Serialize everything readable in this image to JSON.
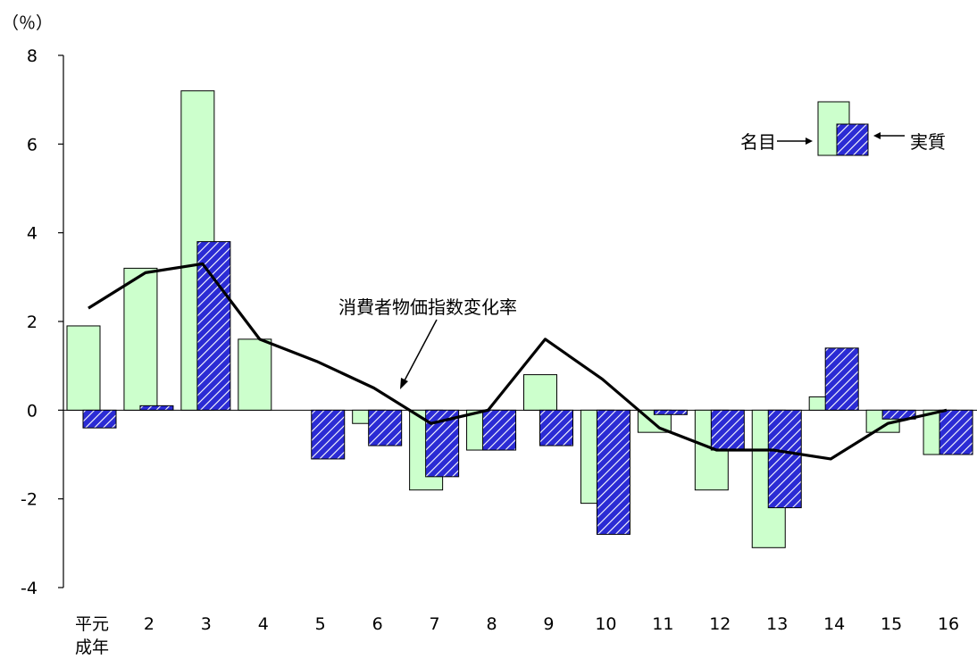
{
  "chart_data": {
    "type": "bar",
    "ylabel": "（％）",
    "ylim": [
      -4,
      8
    ],
    "yticks": [
      -4,
      -2,
      0,
      2,
      4,
      6,
      8
    ],
    "categories": [
      {
        "line1": "平元",
        "line2": "成年"
      },
      {
        "line1": "2",
        "line2": ""
      },
      {
        "line1": "3",
        "line2": ""
      },
      {
        "line1": "4",
        "line2": ""
      },
      {
        "line1": "5",
        "line2": ""
      },
      {
        "line1": "6",
        "line2": ""
      },
      {
        "line1": "7",
        "line2": ""
      },
      {
        "line1": "8",
        "line2": ""
      },
      {
        "line1": "9",
        "line2": ""
      },
      {
        "line1": "10",
        "line2": ""
      },
      {
        "line1": "11",
        "line2": ""
      },
      {
        "line1": "12",
        "line2": ""
      },
      {
        "line1": "13",
        "line2": ""
      },
      {
        "line1": "14",
        "line2": ""
      },
      {
        "line1": "15",
        "line2": ""
      },
      {
        "line1": "16",
        "line2": ""
      }
    ],
    "series": [
      {
        "name": "名目",
        "kind": "bar",
        "color": "#ccffcc",
        "values": [
          1.9,
          3.2,
          7.2,
          1.6,
          0.0,
          -0.3,
          -1.8,
          -0.9,
          0.8,
          -2.1,
          -0.5,
          -1.8,
          -3.1,
          0.3,
          -0.5,
          -1.0
        ]
      },
      {
        "name": "実質",
        "kind": "bar",
        "color": "#2b2bd4",
        "pattern": "diagonal-hatch",
        "values": [
          -0.4,
          0.1,
          3.8,
          0.0,
          -1.1,
          -0.8,
          -1.5,
          -0.9,
          -0.8,
          -2.8,
          -0.1,
          -0.9,
          -2.2,
          1.4,
          -0.2,
          -1.0
        ]
      },
      {
        "name": "消費者物価指数変化率",
        "kind": "line",
        "color": "#000000",
        "values": [
          2.3,
          3.1,
          3.3,
          1.6,
          1.1,
          0.5,
          -0.3,
          0.0,
          1.6,
          0.7,
          -0.4,
          -0.9,
          -0.9,
          -1.1,
          -0.3,
          0.0
        ]
      }
    ],
    "annotations": {
      "line_label": "消費者物価指数変化率",
      "legend_nominal": "名目",
      "legend_real": "実質"
    }
  }
}
